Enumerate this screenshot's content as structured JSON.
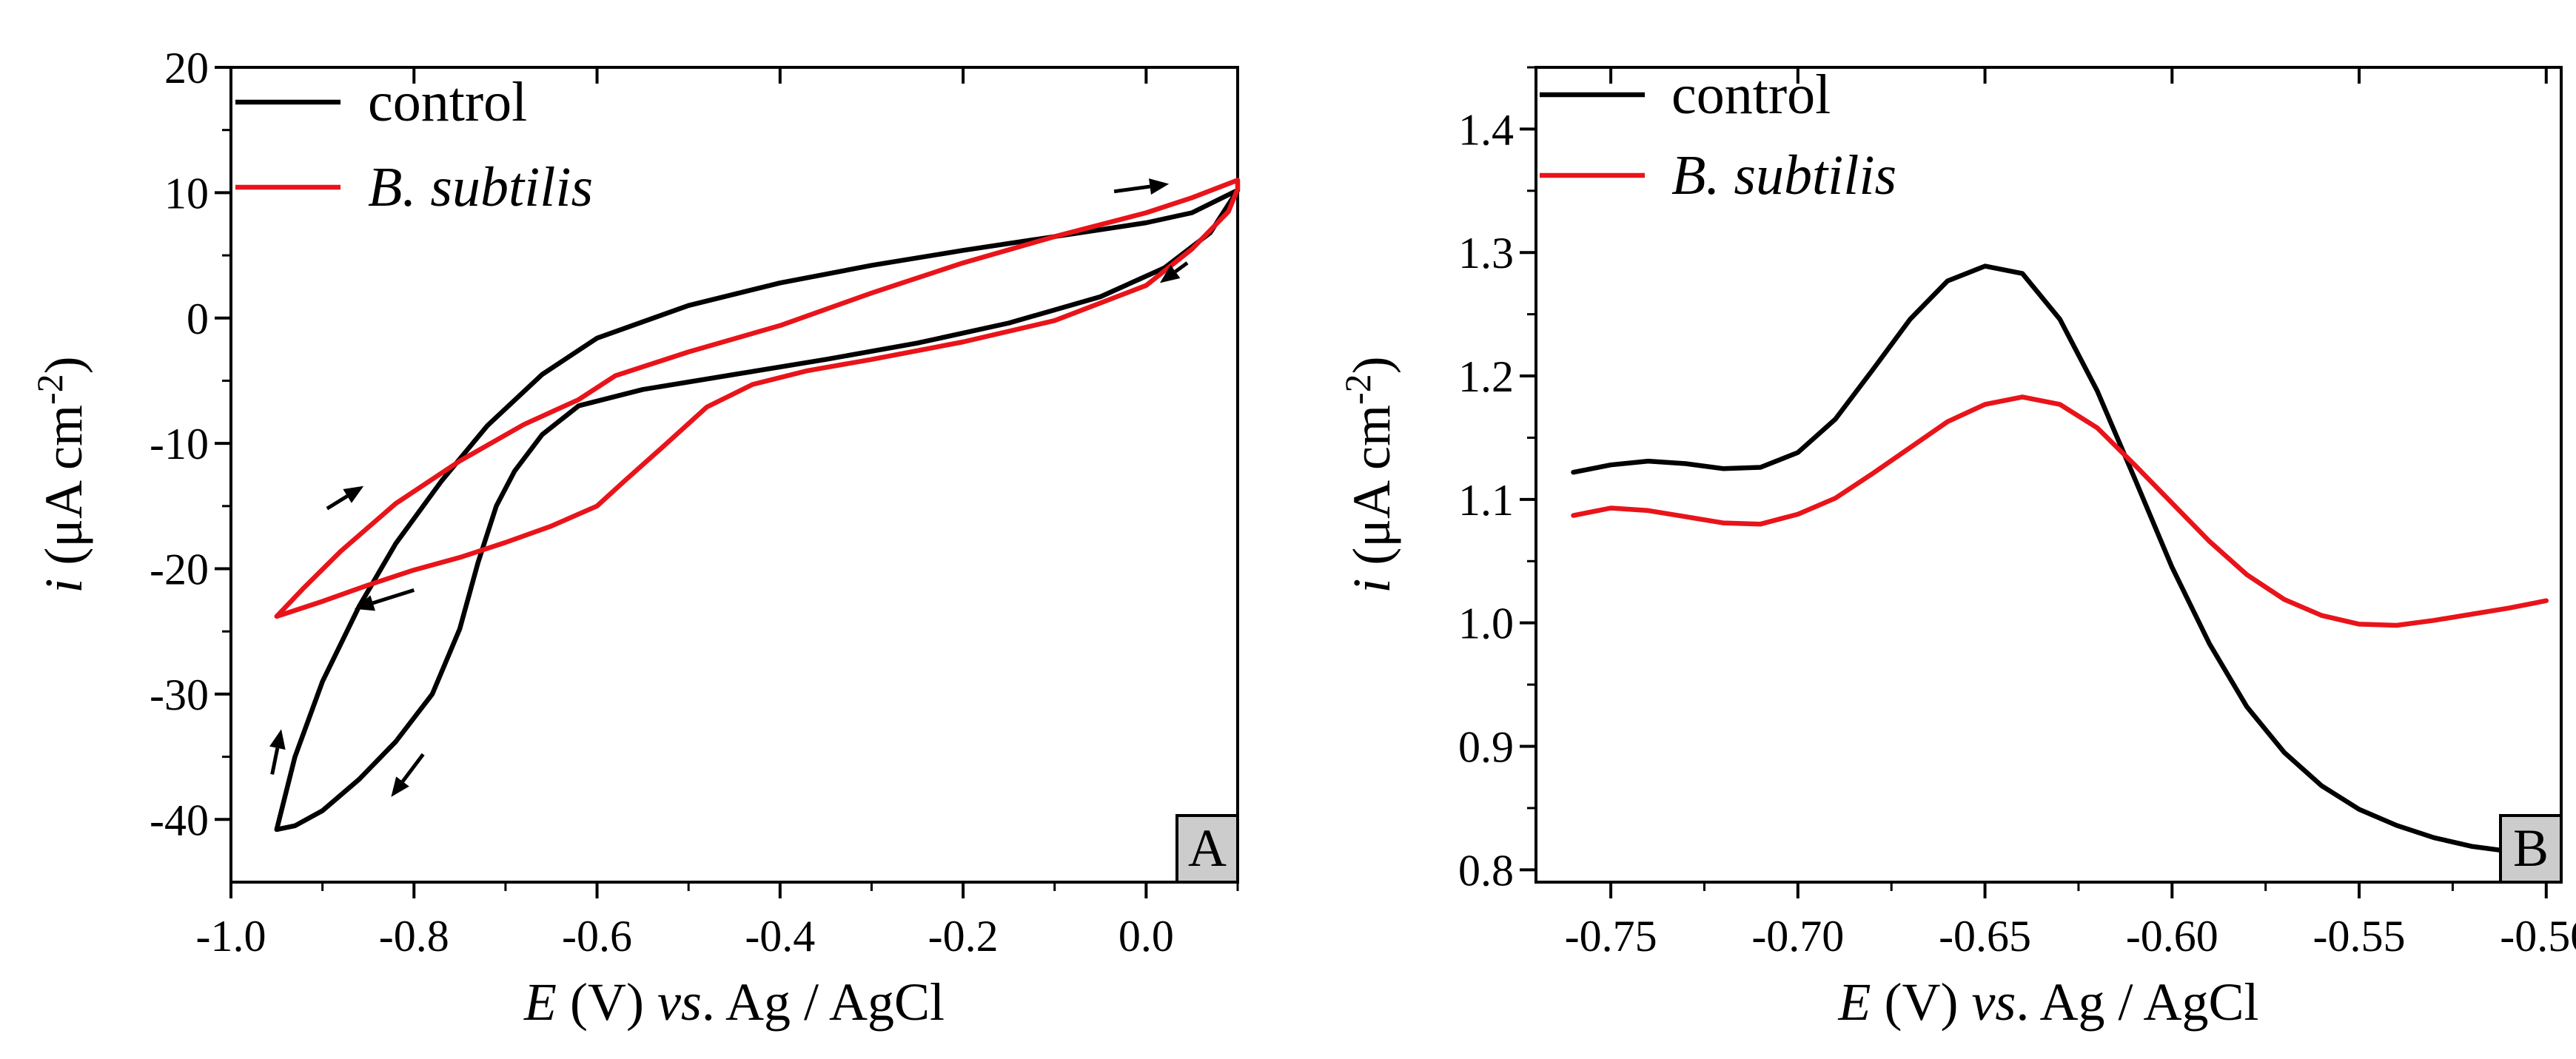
{
  "colors": {
    "control": "#000000",
    "bsubtilis": "#e8141a",
    "panel_box": "#cccccc"
  },
  "chart_data": [
    {
      "type": "line",
      "panel": "A",
      "xlabel": {
        "italic": "E",
        "rest": " (V) ",
        "italic2": "vs",
        "rest2": ". Ag / AgCl"
      },
      "ylabel": {
        "italic": "i",
        "rest": " (μA cm",
        "sup": "-2",
        "close": ")"
      },
      "xlim": [
        -1.0,
        0.1
      ],
      "ylim": [
        -45,
        20
      ],
      "xticks": [
        -1.0,
        -0.8,
        -0.6,
        -0.4,
        -0.2,
        0.0
      ],
      "xtick_labels": [
        "-1.0",
        "-0.8",
        "-0.6",
        "-0.4",
        "-0.2",
        "0.0"
      ],
      "yticks": [
        20,
        10,
        0,
        -10,
        -20,
        -30,
        -40
      ],
      "ytick_labels": [
        "20",
        "10",
        "0",
        "-10",
        "-20",
        "-30",
        "-40"
      ],
      "legend": {
        "position": "top-left",
        "entries": [
          {
            "label": "control",
            "italic": false,
            "color": "#000000"
          },
          {
            "label": "B. subtilis",
            "italic": true,
            "color": "#e8141a"
          }
        ]
      },
      "series": [
        {
          "name": "control",
          "color": "#000000",
          "points": [
            [
              -0.95,
              -40.8
            ],
            [
              -0.93,
              -40.5
            ],
            [
              -0.9,
              -39.3
            ],
            [
              -0.86,
              -36.8
            ],
            [
              -0.82,
              -33.8
            ],
            [
              -0.78,
              -30.0
            ],
            [
              -0.75,
              -24.8
            ],
            [
              -0.73,
              -19.5
            ],
            [
              -0.71,
              -15.0
            ],
            [
              -0.69,
              -12.2
            ],
            [
              -0.66,
              -9.3
            ],
            [
              -0.62,
              -7.0
            ],
            [
              -0.55,
              -5.7
            ],
            [
              -0.45,
              -4.5
            ],
            [
              -0.35,
              -3.3
            ],
            [
              -0.25,
              -2.0
            ],
            [
              -0.15,
              -0.4
            ],
            [
              -0.05,
              1.7
            ],
            [
              0.02,
              4.0
            ],
            [
              0.07,
              6.8
            ],
            [
              0.1,
              10.2
            ],
            [
              0.05,
              8.4
            ],
            [
              0.0,
              7.6
            ],
            [
              -0.1,
              6.5
            ],
            [
              -0.2,
              5.4
            ],
            [
              -0.3,
              4.2
            ],
            [
              -0.4,
              2.8
            ],
            [
              -0.5,
              1.0
            ],
            [
              -0.6,
              -1.6
            ],
            [
              -0.66,
              -4.5
            ],
            [
              -0.72,
              -8.6
            ],
            [
              -0.77,
              -13.0
            ],
            [
              -0.82,
              -18.0
            ],
            [
              -0.86,
              -23.0
            ],
            [
              -0.9,
              -29.0
            ],
            [
              -0.93,
              -35.0
            ],
            [
              -0.95,
              -40.8
            ]
          ]
        },
        {
          "name": "B. subtilis",
          "color": "#e8141a",
          "points": [
            [
              -0.95,
              -23.8
            ],
            [
              -0.9,
              -22.6
            ],
            [
              -0.85,
              -21.3
            ],
            [
              -0.8,
              -20.1
            ],
            [
              -0.75,
              -19.1
            ],
            [
              -0.7,
              -17.9
            ],
            [
              -0.65,
              -16.6
            ],
            [
              -0.6,
              -15.0
            ],
            [
              -0.57,
              -13.0
            ],
            [
              -0.53,
              -10.4
            ],
            [
              -0.48,
              -7.1
            ],
            [
              -0.43,
              -5.3
            ],
            [
              -0.37,
              -4.2
            ],
            [
              -0.3,
              -3.3
            ],
            [
              -0.2,
              -1.9
            ],
            [
              -0.1,
              -0.2
            ],
            [
              0.0,
              2.6
            ],
            [
              0.05,
              5.5
            ],
            [
              0.09,
              8.5
            ],
            [
              0.1,
              10.3
            ],
            [
              0.1,
              11.0
            ],
            [
              0.05,
              9.6
            ],
            [
              0.0,
              8.4
            ],
            [
              -0.1,
              6.5
            ],
            [
              -0.2,
              4.4
            ],
            [
              -0.3,
              2.0
            ],
            [
              -0.4,
              -0.6
            ],
            [
              -0.5,
              -2.7
            ],
            [
              -0.58,
              -4.6
            ],
            [
              -0.62,
              -6.5
            ],
            [
              -0.68,
              -8.5
            ],
            [
              -0.75,
              -11.4
            ],
            [
              -0.82,
              -14.8
            ],
            [
              -0.88,
              -18.6
            ],
            [
              -0.92,
              -21.5
            ],
            [
              -0.95,
              -23.8
            ]
          ]
        }
      ],
      "arrows": [
        {
          "from": [
            -0.035,
            10.1
          ],
          "to": [
            0.025,
            10.7
          ]
        },
        {
          "from": [
            0.045,
            4.4
          ],
          "to": [
            0.015,
            2.8
          ]
        },
        {
          "from": [
            -0.895,
            -15.2
          ],
          "to": [
            -0.855,
            -13.4
          ]
        },
        {
          "from": [
            -0.8,
            -21.7
          ],
          "to": [
            -0.865,
            -23.2
          ]
        },
        {
          "from": [
            -0.955,
            -36.4
          ],
          "to": [
            -0.945,
            -32.8
          ]
        },
        {
          "from": [
            -0.79,
            -34.8
          ],
          "to": [
            -0.825,
            -38.2
          ]
        }
      ],
      "panel_label": "A"
    },
    {
      "type": "line",
      "panel": "B",
      "xlabel": {
        "italic": "E",
        "rest": " (V) ",
        "italic2": "vs",
        "rest2": ". Ag / AgCl"
      },
      "ylabel": {
        "italic": "i",
        "rest": " (μA cm",
        "sup": "-2",
        "close": ")"
      },
      "xlim": [
        -0.77,
        -0.496
      ],
      "ylim": [
        0.79,
        1.45
      ],
      "xticks": [
        -0.75,
        -0.7,
        -0.65,
        -0.6,
        -0.55,
        -0.5
      ],
      "xtick_labels": [
        "-0.75",
        "-0.70",
        "-0.65",
        "-0.60",
        "-0.55",
        "-0.50"
      ],
      "yticks": [
        1.4,
        1.3,
        1.2,
        1.1,
        1.0,
        0.9,
        0.8
      ],
      "ytick_labels": [
        "1.4",
        "1.3",
        "1.2",
        "1.1",
        "1.0",
        "0.9",
        "0.8"
      ],
      "legend": {
        "position": "top-left",
        "entries": [
          {
            "label": "control",
            "italic": false,
            "color": "#000000"
          },
          {
            "label": "B. subtilis",
            "italic": true,
            "color": "#e8141a"
          }
        ]
      },
      "series": [
        {
          "name": "control",
          "color": "#000000",
          "points": [
            [
              -0.76,
              1.122
            ],
            [
              -0.75,
              1.128
            ],
            [
              -0.74,
              1.131
            ],
            [
              -0.73,
              1.129
            ],
            [
              -0.72,
              1.125
            ],
            [
              -0.71,
              1.126
            ],
            [
              -0.7,
              1.138
            ],
            [
              -0.69,
              1.165
            ],
            [
              -0.68,
              1.205
            ],
            [
              -0.67,
              1.246
            ],
            [
              -0.66,
              1.277
            ],
            [
              -0.65,
              1.289
            ],
            [
              -0.64,
              1.283
            ],
            [
              -0.63,
              1.246
            ],
            [
              -0.62,
              1.188
            ],
            [
              -0.61,
              1.117
            ],
            [
              -0.6,
              1.045
            ],
            [
              -0.59,
              0.983
            ],
            [
              -0.58,
              0.932
            ],
            [
              -0.57,
              0.895
            ],
            [
              -0.56,
              0.868
            ],
            [
              -0.55,
              0.849
            ],
            [
              -0.54,
              0.836
            ],
            [
              -0.53,
              0.826
            ],
            [
              -0.52,
              0.819
            ],
            [
              -0.51,
              0.815
            ],
            [
              -0.5,
              0.814
            ]
          ]
        },
        {
          "name": "B. subtilis",
          "color": "#e8141a",
          "points": [
            [
              -0.76,
              1.087
            ],
            [
              -0.75,
              1.093
            ],
            [
              -0.74,
              1.091
            ],
            [
              -0.73,
              1.086
            ],
            [
              -0.72,
              1.081
            ],
            [
              -0.71,
              1.08
            ],
            [
              -0.7,
              1.088
            ],
            [
              -0.69,
              1.101
            ],
            [
              -0.68,
              1.121
            ],
            [
              -0.67,
              1.142
            ],
            [
              -0.66,
              1.163
            ],
            [
              -0.65,
              1.177
            ],
            [
              -0.64,
              1.183
            ],
            [
              -0.63,
              1.177
            ],
            [
              -0.62,
              1.158
            ],
            [
              -0.61,
              1.128
            ],
            [
              -0.6,
              1.097
            ],
            [
              -0.59,
              1.066
            ],
            [
              -0.58,
              1.039
            ],
            [
              -0.57,
              1.019
            ],
            [
              -0.56,
              1.006
            ],
            [
              -0.55,
              0.999
            ],
            [
              -0.54,
              0.998
            ],
            [
              -0.53,
              1.002
            ],
            [
              -0.52,
              1.007
            ],
            [
              -0.51,
              1.012
            ],
            [
              -0.5,
              1.018
            ]
          ]
        }
      ],
      "panel_label": "B"
    }
  ]
}
